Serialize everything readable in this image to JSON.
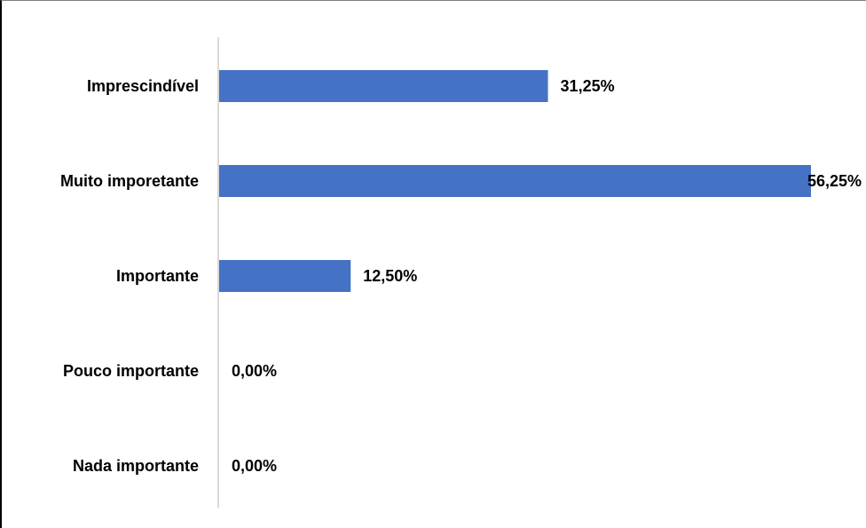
{
  "chart_data": {
    "type": "bar",
    "orientation": "horizontal",
    "categories": [
      "Imprescindível",
      "Muito imporetante",
      "Importante",
      "Pouco importante",
      "Nada importante"
    ],
    "values": [
      31.25,
      56.25,
      12.5,
      0,
      0
    ],
    "data_labels": [
      "31,25%",
      "56,25%",
      "12,50%",
      "0,00%",
      "0,00%"
    ],
    "title": "",
    "xlabel": "",
    "ylabel": "",
    "xlim": [
      0,
      56.25
    ],
    "grid": false,
    "legend": "none",
    "bar_color": "#4472C4"
  }
}
